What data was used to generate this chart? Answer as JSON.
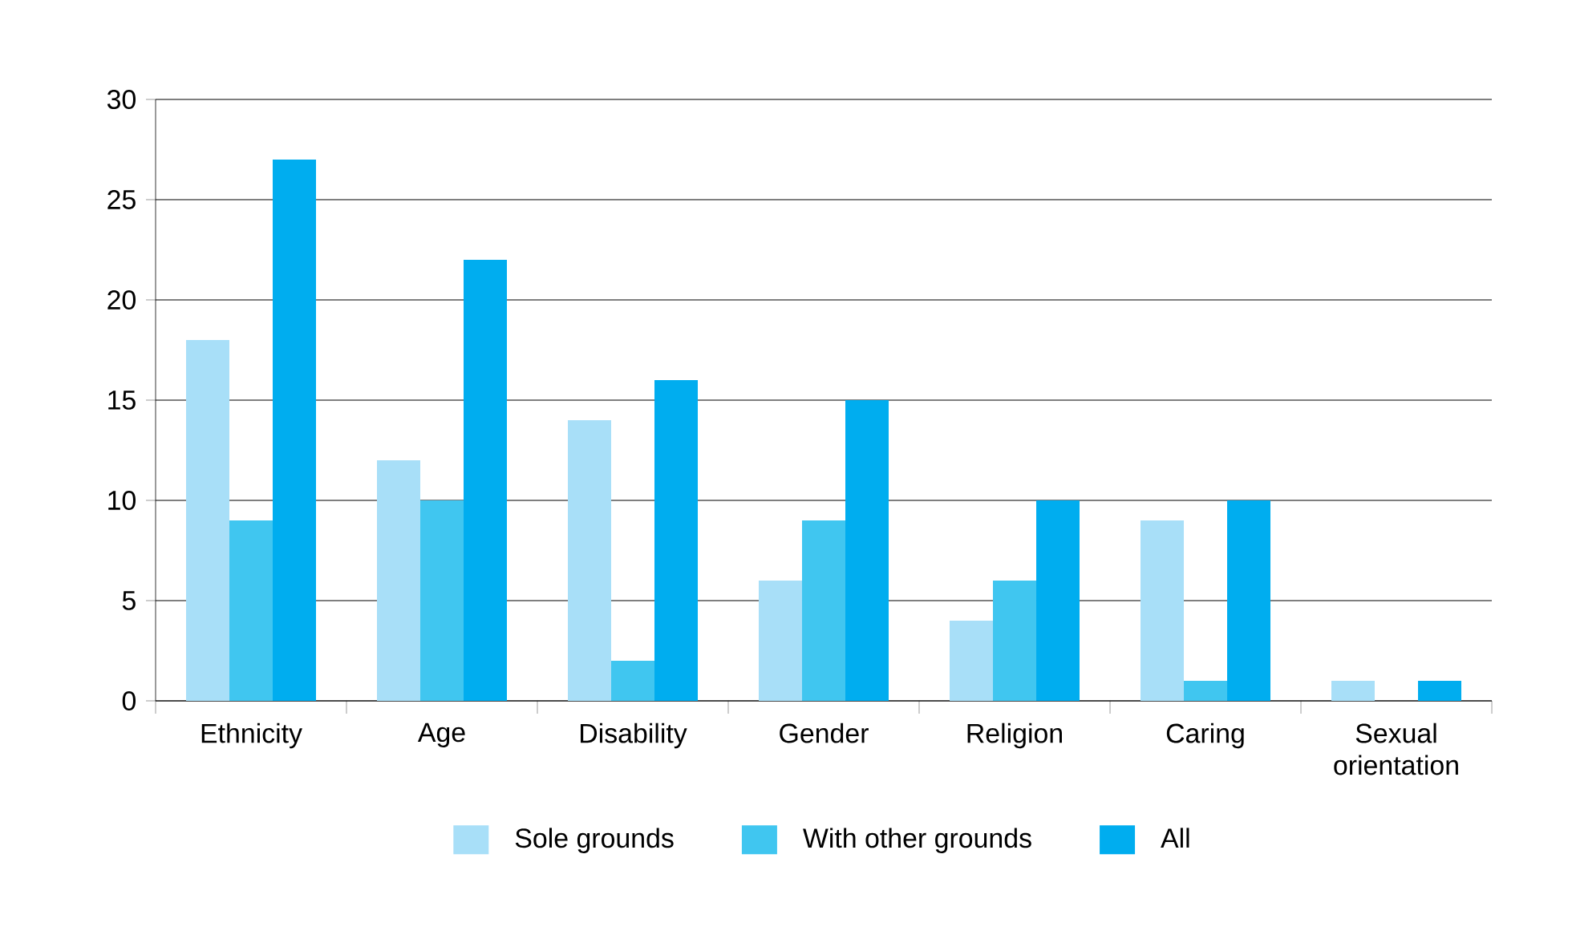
{
  "chart_data": {
    "type": "bar",
    "categories": [
      "Ethnicity",
      "Age",
      "Disability",
      "Gender",
      "Religion",
      "Caring",
      "Sexual orientation"
    ],
    "series": [
      {
        "name": "Sole grounds",
        "color": "#a8dff8",
        "values": [
          18,
          12,
          14,
          6,
          4,
          9,
          1
        ]
      },
      {
        "name": "With other grounds",
        "color": "#40c6f0",
        "values": [
          9,
          10,
          2,
          9,
          6,
          1,
          0
        ]
      },
      {
        "name": "All",
        "color": "#00adef",
        "values": [
          27,
          22,
          16,
          15,
          10,
          10,
          1
        ]
      }
    ],
    "ylim": [
      0,
      30
    ],
    "yticks": [
      0,
      5,
      10,
      15,
      20,
      25,
      30
    ],
    "grid": "y",
    "legend": "bottom"
  }
}
